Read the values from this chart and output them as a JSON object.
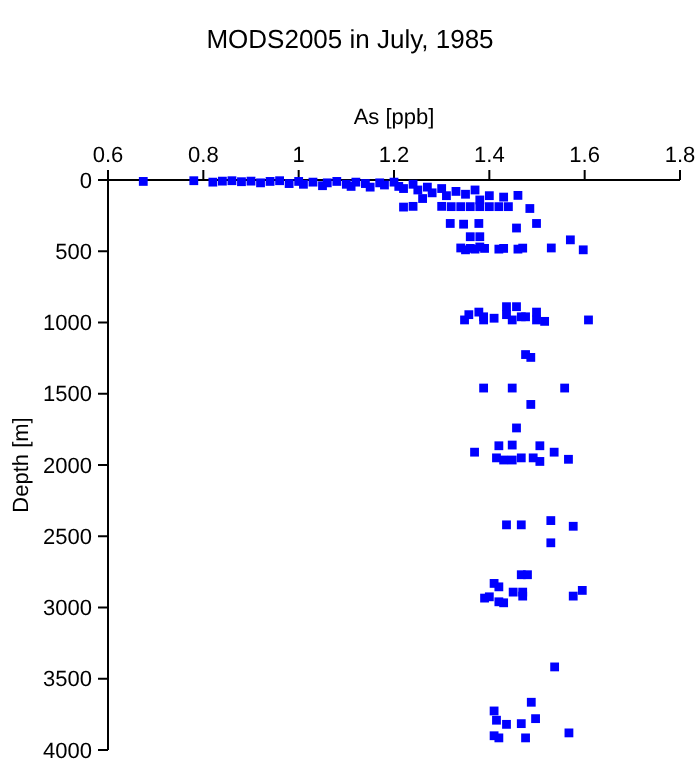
{
  "chart_data": {
    "type": "scatter",
    "title": "MODS2005 in July, 1985",
    "xlabel": "As [ppb]",
    "ylabel": "Depth [m]",
    "xlim": [
      0.6,
      1.8
    ],
    "xticks": [
      0.6,
      0.8,
      1,
      1.2,
      1.4,
      1.6,
      1.8
    ],
    "ylim": [
      4000,
      0
    ],
    "yticks": [
      0,
      500,
      1000,
      1500,
      2000,
      2500,
      3000,
      3500,
      4000
    ],
    "marker": "square",
    "grid": false,
    "series": [
      {
        "color": "#0000ff",
        "x": [
          0.674,
          0.78,
          0.82,
          0.84,
          0.86,
          0.88,
          0.9,
          0.92,
          0.94,
          0.96,
          0.98,
          1.0,
          1.01,
          1.03,
          1.05,
          1.06,
          1.08,
          1.1,
          1.11,
          1.12,
          1.14,
          1.15,
          1.17,
          1.18,
          1.2,
          1.21,
          1.22,
          1.24,
          1.25,
          1.27,
          1.28,
          1.3,
          1.31,
          1.33,
          1.35,
          1.37,
          1.38,
          1.4,
          1.43,
          1.26,
          1.22,
          1.24,
          1.3,
          1.32,
          1.34,
          1.36,
          1.38,
          1.4,
          1.42,
          1.44,
          1.46,
          1.485,
          1.318,
          1.346,
          1.378,
          1.457,
          1.499,
          1.36,
          1.38,
          1.34,
          1.35,
          1.36,
          1.37,
          1.38,
          1.39,
          1.42,
          1.43,
          1.46,
          1.47,
          1.53,
          1.57,
          1.597,
          1.348,
          1.357,
          1.378,
          1.388,
          1.388,
          1.41,
          1.436,
          1.457,
          1.436,
          1.448,
          1.467,
          1.476,
          1.499,
          1.499,
          1.516,
          1.608,
          1.476,
          1.487,
          1.388,
          1.448,
          1.558,
          1.487,
          1.457,
          1.42,
          1.448,
          1.506,
          1.369,
          1.536,
          1.415,
          1.467,
          1.492,
          1.566,
          1.43,
          1.448,
          1.506,
          1.436,
          1.467,
          1.529,
          1.576,
          1.529,
          1.467,
          1.48,
          1.41,
          1.42,
          1.45,
          1.47,
          1.47,
          1.39,
          1.4,
          1.42,
          1.43,
          1.576,
          1.595,
          1.537,
          1.488,
          1.41,
          1.415,
          1.497,
          1.436,
          1.467,
          1.41,
          1.42,
          1.476,
          1.567
        ],
        "values": [
          10,
          5,
          15,
          8,
          5,
          12,
          8,
          20,
          10,
          5,
          25,
          10,
          30,
          15,
          40,
          20,
          10,
          30,
          45,
          15,
          25,
          50,
          20,
          35,
          15,
          45,
          60,
          30,
          70,
          50,
          90,
          60,
          110,
          80,
          100,
          70,
          140,
          110,
          120,
          130,
          190,
          185,
          185,
          187,
          187,
          187,
          187,
          187,
          187,
          187,
          108,
          200,
          305,
          310,
          305,
          337,
          305,
          398,
          398,
          477,
          490,
          480,
          485,
          470,
          480,
          485,
          480,
          485,
          478,
          477,
          420,
          490,
          982,
          945,
          927,
          960,
          982,
          970,
          889,
          889,
          945,
          982,
          960,
          960,
          927,
          982,
          992,
          982,
          1225,
          1245,
          1460,
          1460,
          1460,
          1575,
          1740,
          1865,
          1860,
          1865,
          1910,
          1910,
          1950,
          1950,
          1950,
          1960,
          1965,
          1965,
          1975,
          2420,
          2420,
          2390,
          2430,
          2546,
          2770,
          2770,
          2831,
          2855,
          2892,
          2892,
          2920,
          2934,
          2925,
          2960,
          2967,
          2920,
          2880,
          3417,
          3665,
          3726,
          3791,
          3780,
          3820,
          3815,
          3900,
          3915,
          3915,
          3880
        ]
      }
    ]
  }
}
